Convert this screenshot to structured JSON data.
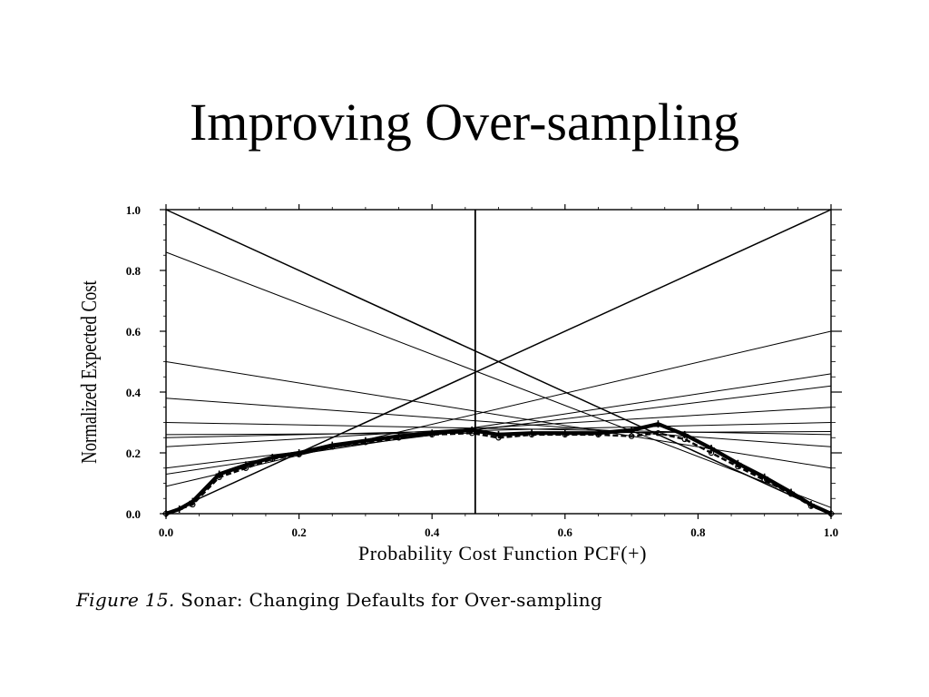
{
  "slide": {
    "title": "Improving Over-sampling"
  },
  "figure": {
    "caption_label": "Figure 15.",
    "caption_text": "Sonar:  Changing Defaults for Over-sampling"
  },
  "chart_data": {
    "type": "line",
    "title": "",
    "xlabel": "Probability Cost Function PCF(+)",
    "ylabel": "Normalized Expected Cost",
    "xlim": [
      0,
      1
    ],
    "ylim": [
      0,
      1
    ],
    "xticks": [
      "0.0",
      "0.2",
      "0.4",
      "0.6",
      "0.8",
      "1.0"
    ],
    "yticks": [
      "0.0",
      "0.2",
      "0.4",
      "0.6",
      "0.8",
      "1.0"
    ],
    "grid": false,
    "vertical_marker_x": 0.465,
    "cost_lines": [
      {
        "y0": 1.0,
        "y1": 0.0
      },
      {
        "y0": 0.86,
        "y1": 0.02
      },
      {
        "y0": 0.5,
        "y1": 0.15
      },
      {
        "y0": 0.38,
        "y1": 0.22
      },
      {
        "y0": 0.3,
        "y1": 0.26
      },
      {
        "y0": 0.26,
        "y1": 0.27
      },
      {
        "y0": 0.25,
        "y1": 0.3
      },
      {
        "y0": 0.22,
        "y1": 0.35
      },
      {
        "y0": 0.15,
        "y1": 0.42
      },
      {
        "y0": 0.13,
        "y1": 0.46
      },
      {
        "y0": 0.09,
        "y1": 0.6
      },
      {
        "y0": 0.0,
        "y1": 1.0
      }
    ],
    "lower_envelope": {
      "x": [
        0.0,
        0.02,
        0.04,
        0.08,
        0.12,
        0.16,
        0.2,
        0.25,
        0.3,
        0.35,
        0.4,
        0.46,
        0.5,
        0.55,
        0.6,
        0.65,
        0.7,
        0.74,
        0.78,
        0.82,
        0.86,
        0.9,
        0.94,
        0.97,
        1.0
      ],
      "y": [
        0.0,
        0.015,
        0.04,
        0.13,
        0.16,
        0.185,
        0.2,
        0.225,
        0.24,
        0.255,
        0.265,
        0.275,
        0.26,
        0.265,
        0.265,
        0.265,
        0.275,
        0.295,
        0.26,
        0.215,
        0.165,
        0.12,
        0.07,
        0.03,
        0.0
      ]
    },
    "dashed_curve": {
      "x": [
        0.0,
        0.04,
        0.08,
        0.12,
        0.16,
        0.2,
        0.25,
        0.3,
        0.35,
        0.4,
        0.46,
        0.5,
        0.55,
        0.6,
        0.65,
        0.7,
        0.74,
        0.78,
        0.82,
        0.86,
        0.9,
        0.94,
        0.97,
        1.0
      ],
      "y": [
        0.0,
        0.03,
        0.12,
        0.15,
        0.18,
        0.195,
        0.22,
        0.235,
        0.25,
        0.26,
        0.265,
        0.25,
        0.26,
        0.26,
        0.26,
        0.255,
        0.265,
        0.245,
        0.2,
        0.155,
        0.11,
        0.065,
        0.025,
        0.0
      ]
    }
  }
}
